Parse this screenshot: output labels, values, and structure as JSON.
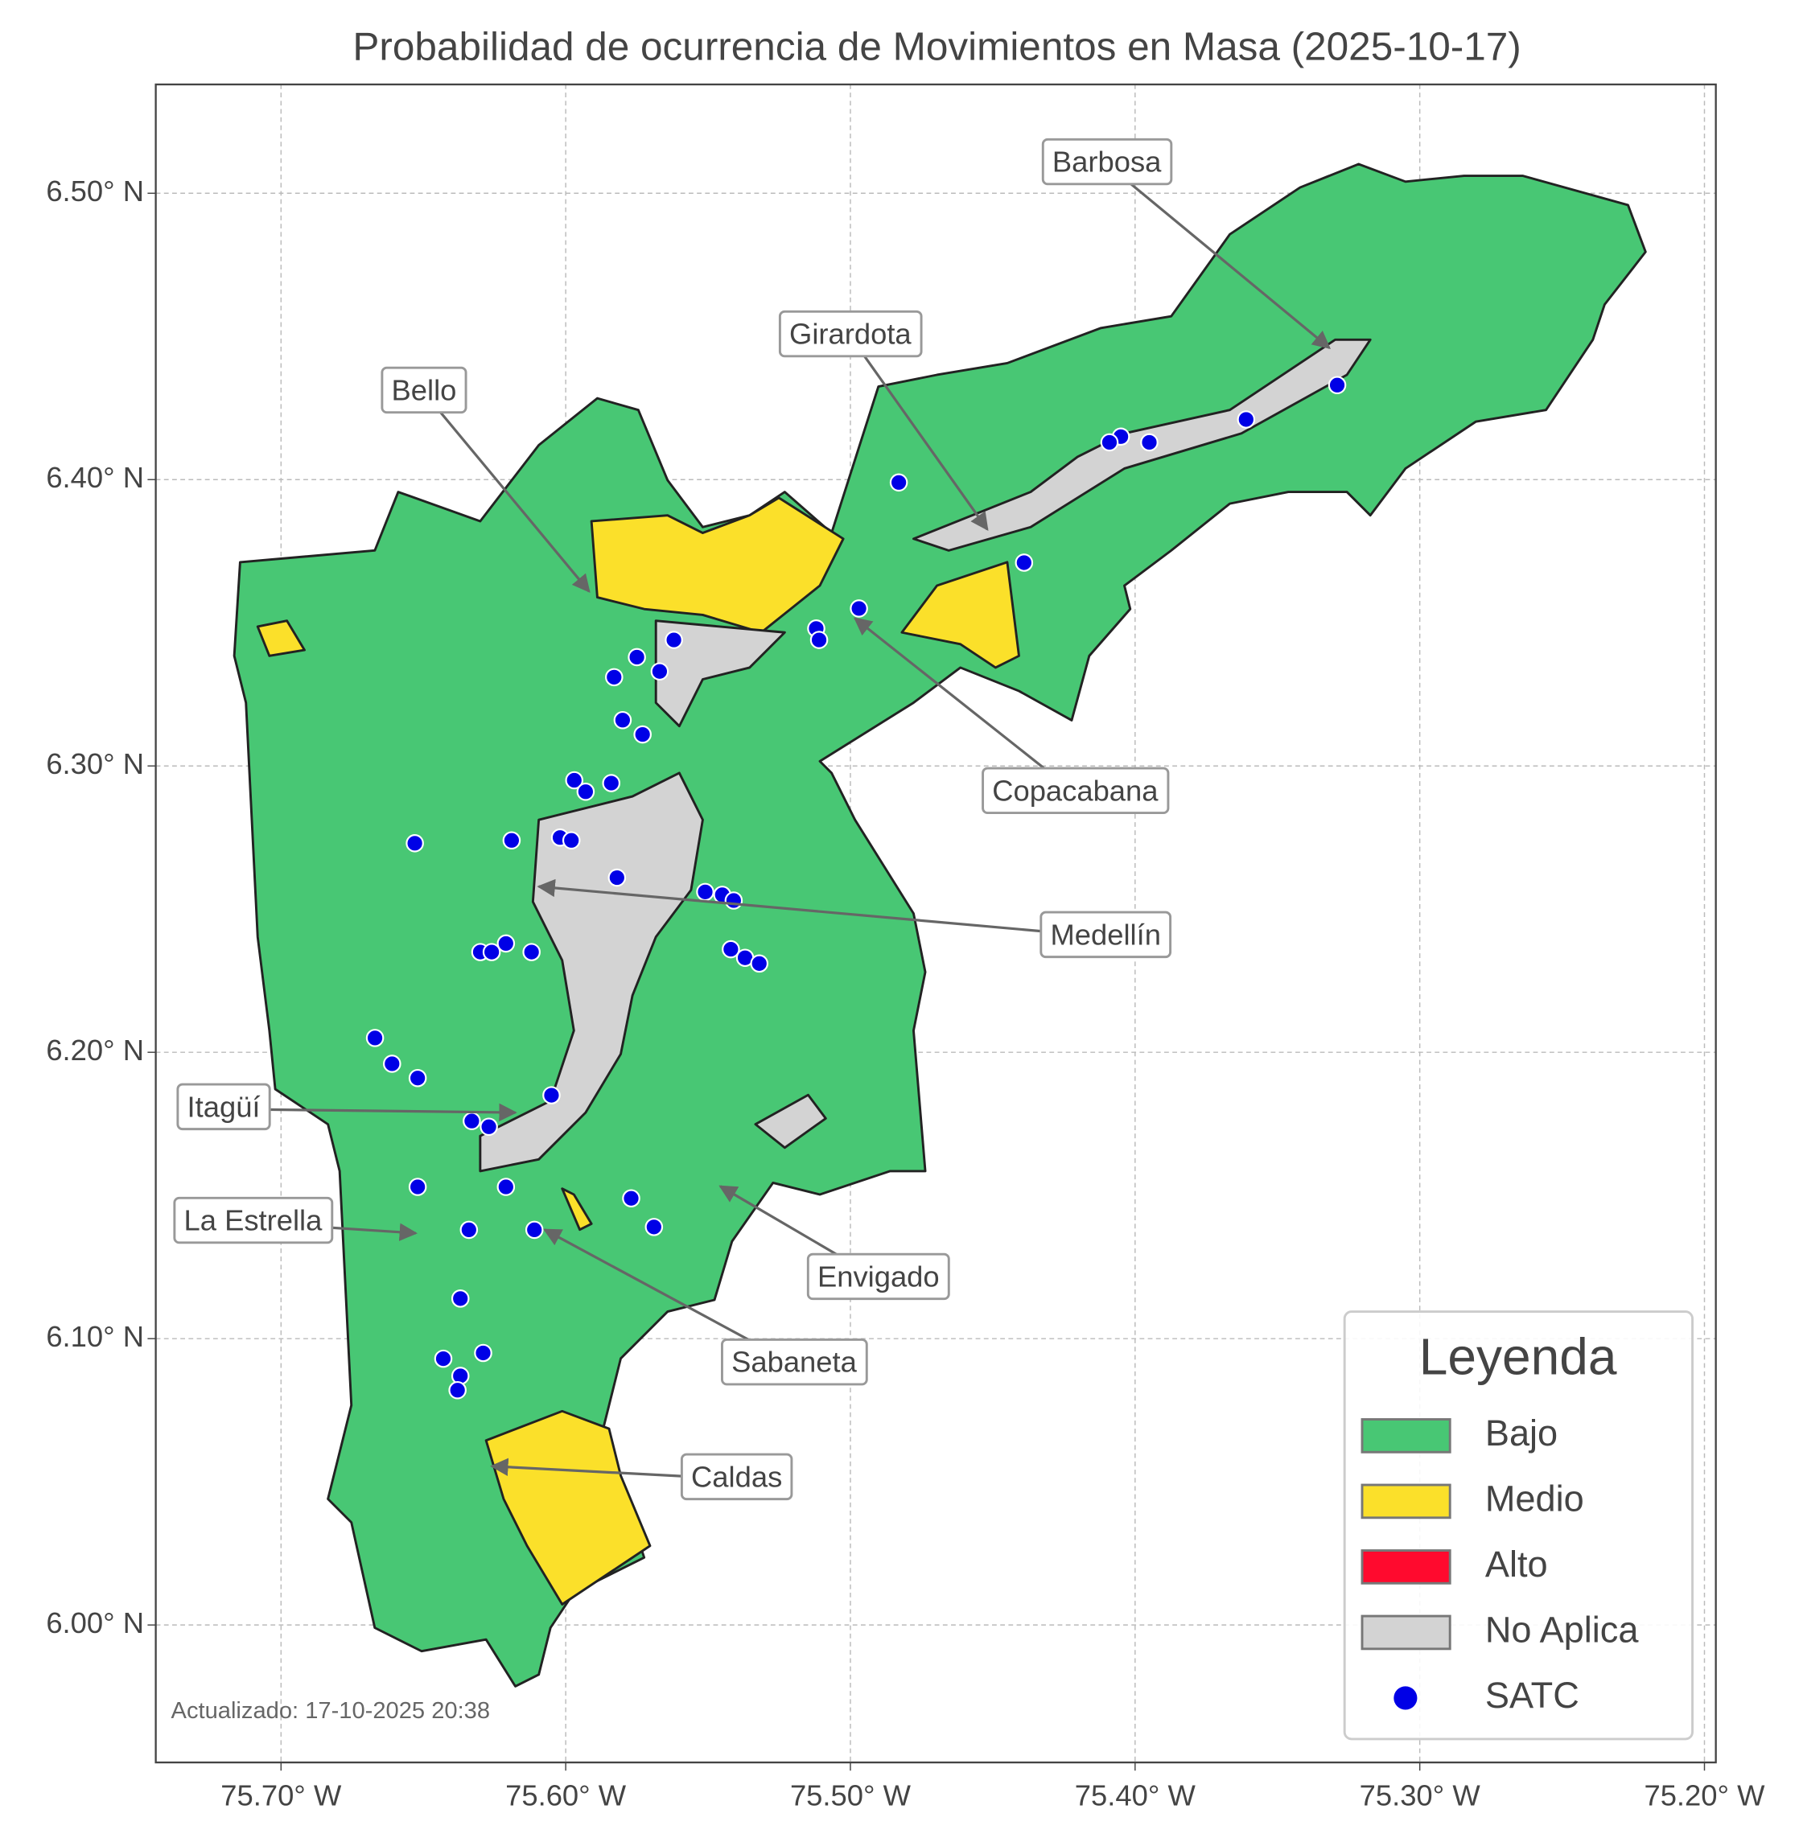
{
  "chart_data": {
    "type": "map",
    "title": "Probabilidad de ocurrencia de Movimientos en Masa (2025-10-17)",
    "xlim": [
      -75.744,
      -75.196
    ],
    "ylim": [
      5.952,
      6.538
    ],
    "xticks": [
      {
        "value": -75.7,
        "label": "75.70° W"
      },
      {
        "value": -75.6,
        "label": "75.60° W"
      },
      {
        "value": -75.5,
        "label": "75.50° W"
      },
      {
        "value": -75.4,
        "label": "75.40° W"
      },
      {
        "value": -75.3,
        "label": "75.30° W"
      },
      {
        "value": -75.2,
        "label": "75.20° W"
      }
    ],
    "yticks": [
      {
        "value": 6.0,
        "label": "6.00° N"
      },
      {
        "value": 6.1,
        "label": "6.10° N"
      },
      {
        "value": 6.2,
        "label": "6.20° N"
      },
      {
        "value": 6.3,
        "label": "6.30° N"
      },
      {
        "value": 6.4,
        "label": "6.40° N"
      },
      {
        "value": 6.5,
        "label": "6.50° N"
      }
    ],
    "grid": true,
    "annotations": [
      "Barbosa",
      "Girardota",
      "Bello",
      "Copacabana",
      "Medellín",
      "Itagüí",
      "La Estrella",
      "Envigado",
      "Sabaneta",
      "Caldas"
    ],
    "legend_title": "Leyenda",
    "legend_position": "lower right",
    "classes": [
      {
        "name": "Bajo",
        "color": "#48c774"
      },
      {
        "name": "Medio",
        "color": "#fbe02a"
      },
      {
        "name": "Alto",
        "color": "#ff0a2e"
      },
      {
        "name": "No Aplica",
        "color": "#d3d3d3"
      }
    ],
    "series": [
      {
        "name": "SATC",
        "color": "#0000e6",
        "x": [
          -75.329,
          -75.361,
          -75.395,
          -75.405,
          -75.409,
          -75.483,
          -75.439,
          -75.497,
          -75.512,
          -75.511,
          -75.562,
          -75.575,
          -75.567,
          -75.583,
          -75.58,
          -75.573,
          -75.597,
          -75.593,
          -75.584,
          -75.653,
          -75.619,
          -75.602,
          -75.598,
          -75.582,
          -75.551,
          -75.545,
          -75.541,
          -75.542,
          -75.537,
          -75.532,
          -75.621,
          -75.612,
          -75.63,
          -75.626,
          -75.667,
          -75.661,
          -75.652,
          -75.605,
          -75.633,
          -75.627,
          -75.621,
          -75.652,
          -75.577,
          -75.569,
          -75.611,
          -75.634,
          -75.637,
          -75.643,
          -75.629,
          -75.637,
          -75.638
        ],
        "values": [
          6.433,
          6.421,
          6.413,
          6.415,
          6.413,
          6.399,
          6.371,
          6.355,
          6.348,
          6.344,
          6.344,
          6.338,
          6.333,
          6.331,
          6.316,
          6.311,
          6.295,
          6.291,
          6.294,
          6.273,
          6.274,
          6.275,
          6.274,
          6.261,
          6.256,
          6.255,
          6.253,
          6.236,
          6.233,
          6.231,
          6.238,
          6.235,
          6.235,
          6.235,
          6.205,
          6.196,
          6.191,
          6.185,
          6.176,
          6.174,
          6.153,
          6.153,
          6.149,
          6.139,
          6.138,
          6.138,
          6.114,
          6.093,
          6.095,
          6.087,
          6.082
        ]
      }
    ],
    "note": "Actualizado: 17-10-2025 20:38"
  }
}
